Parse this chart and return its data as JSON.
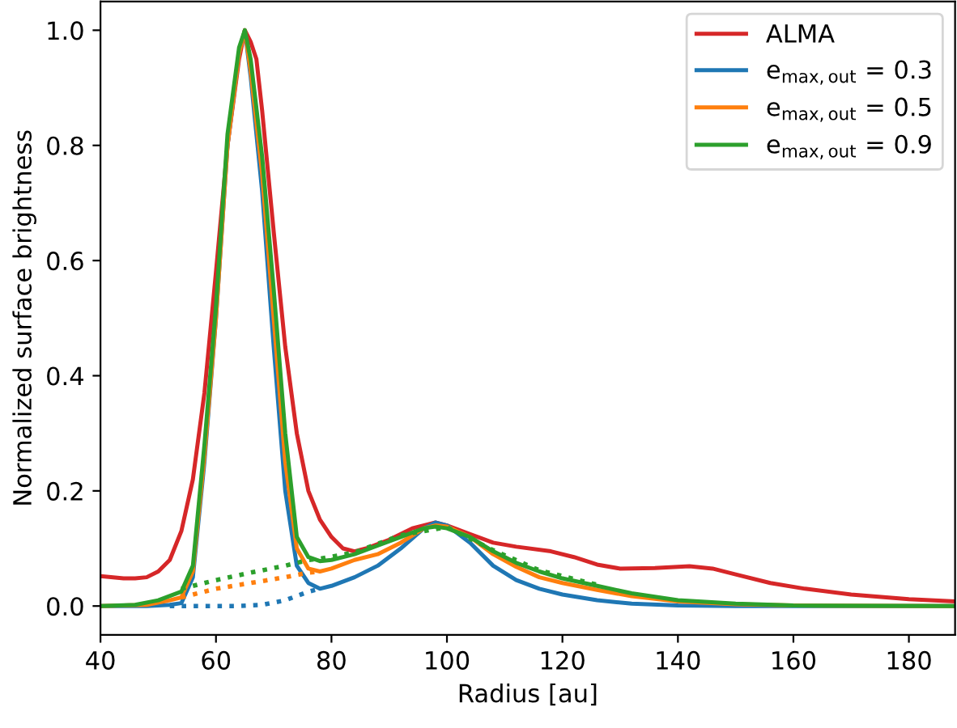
{
  "chart_data": {
    "type": "line",
    "xlabel": "Radius [au]",
    "ylabel": "Normalized surface brightness",
    "xlim": [
      40,
      188
    ],
    "xticks": [
      40,
      60,
      80,
      100,
      120,
      140,
      160,
      180
    ],
    "ylim": [
      -0.05,
      1.05
    ],
    "yticks": [
      {
        "value": 0,
        "label": "0.0"
      },
      {
        "value": 0.2,
        "label": "0.2"
      },
      {
        "value": 0.4,
        "label": "0.4"
      },
      {
        "value": 0.6,
        "label": "0.6"
      },
      {
        "value": 0.8,
        "label": "0.8"
      },
      {
        "value": 1,
        "label": "1.0"
      }
    ],
    "grid": false,
    "legend": "top right",
    "line_style": "solid",
    "marker": "none",
    "series": [
      {
        "name": "ALMA",
        "color": "#d62728",
        "x": [
          40,
          44,
          46,
          48,
          50,
          52,
          54,
          56,
          58,
          60,
          62,
          64,
          65,
          66,
          67,
          68,
          70,
          72,
          74,
          76,
          78,
          80,
          82,
          84,
          86,
          90,
          94,
          98,
          100,
          104,
          108,
          112,
          118,
          122,
          126,
          130,
          136,
          142,
          146,
          150,
          156,
          162,
          170,
          180,
          188
        ],
        "values": [
          0.052,
          0.048,
          0.048,
          0.05,
          0.06,
          0.08,
          0.13,
          0.22,
          0.37,
          0.58,
          0.8,
          0.95,
          1.0,
          0.98,
          0.95,
          0.86,
          0.65,
          0.45,
          0.3,
          0.2,
          0.15,
          0.12,
          0.1,
          0.095,
          0.1,
          0.115,
          0.135,
          0.145,
          0.14,
          0.125,
          0.11,
          0.103,
          0.095,
          0.085,
          0.072,
          0.065,
          0.066,
          0.069,
          0.065,
          0.055,
          0.04,
          0.03,
          0.02,
          0.012,
          0.008
        ]
      },
      {
        "name": "e$_{max,out}$ = 0.3",
        "color": "#1f77b4",
        "x": [
          40,
          48,
          52,
          54,
          56,
          58,
          60,
          62,
          64,
          65,
          66,
          68,
          70,
          72,
          74,
          76,
          78,
          80,
          84,
          88,
          92,
          96,
          98,
          100,
          104,
          108,
          112,
          116,
          120,
          126,
          132,
          140,
          150,
          188
        ],
        "values": [
          0,
          0,
          0.002,
          0.005,
          0.05,
          0.25,
          0.5,
          0.8,
          0.96,
          1.0,
          0.92,
          0.72,
          0.45,
          0.2,
          0.07,
          0.04,
          0.03,
          0.035,
          0.05,
          0.07,
          0.1,
          0.135,
          0.145,
          0.14,
          0.11,
          0.07,
          0.045,
          0.03,
          0.02,
          0.01,
          0.004,
          0.001,
          0,
          0
        ]
      },
      {
        "name": "e$_{max,out}$ = 0.5",
        "color": "#ff7f0e",
        "x": [
          40,
          48,
          52,
          54,
          56,
          58,
          60,
          62,
          64,
          65,
          66,
          68,
          70,
          72,
          74,
          76,
          78,
          80,
          84,
          88,
          92,
          96,
          98,
          100,
          104,
          108,
          112,
          116,
          120,
          126,
          132,
          140,
          150,
          160,
          188
        ],
        "values": [
          0,
          0.002,
          0.01,
          0.015,
          0.06,
          0.26,
          0.5,
          0.8,
          0.96,
          1.0,
          0.93,
          0.75,
          0.5,
          0.25,
          0.1,
          0.065,
          0.06,
          0.065,
          0.08,
          0.09,
          0.11,
          0.135,
          0.14,
          0.138,
          0.12,
          0.09,
          0.068,
          0.05,
          0.04,
          0.028,
          0.017,
          0.008,
          0.003,
          0.001,
          0
        ]
      },
      {
        "name": "e$_{max,out}$ = 0.9",
        "color": "#2ca02c",
        "x": [
          40,
          46,
          50,
          54,
          56,
          58,
          60,
          62,
          64,
          65,
          66,
          68,
          70,
          72,
          74,
          76,
          78,
          80,
          84,
          88,
          92,
          96,
          98,
          100,
          104,
          108,
          112,
          116,
          120,
          126,
          132,
          140,
          150,
          160,
          188
        ],
        "values": [
          0,
          0.002,
          0.01,
          0.025,
          0.07,
          0.28,
          0.52,
          0.82,
          0.97,
          1.0,
          0.95,
          0.78,
          0.55,
          0.3,
          0.12,
          0.085,
          0.078,
          0.08,
          0.09,
          0.105,
          0.12,
          0.135,
          0.138,
          0.135,
          0.12,
          0.095,
          0.075,
          0.06,
          0.048,
          0.035,
          0.022,
          0.01,
          0.004,
          0.001,
          0
        ]
      },
      {
        "color": "#1f77b4",
        "line_style": "dotted",
        "x": [
          52,
          56,
          60,
          64,
          68,
          72,
          76,
          78
        ],
        "values": [
          0,
          0,
          0,
          0,
          0.002,
          0.01,
          0.025,
          0.03
        ]
      },
      {
        "color": "#ff7f0e",
        "line_style": "dotted",
        "x": [
          54,
          60,
          66,
          72,
          76,
          78
        ],
        "values": [
          0.015,
          0.03,
          0.04,
          0.05,
          0.058,
          0.06
        ]
      },
      {
        "color": "#2ca02c",
        "line_style": "dotted",
        "x": [
          54,
          60,
          66,
          72,
          76,
          78,
          84,
          92,
          100,
          108,
          116,
          126
        ],
        "values": [
          0.03,
          0.045,
          0.058,
          0.07,
          0.08,
          0.082,
          0.093,
          0.123,
          0.137,
          0.097,
          0.062,
          0.037
        ]
      }
    ]
  }
}
